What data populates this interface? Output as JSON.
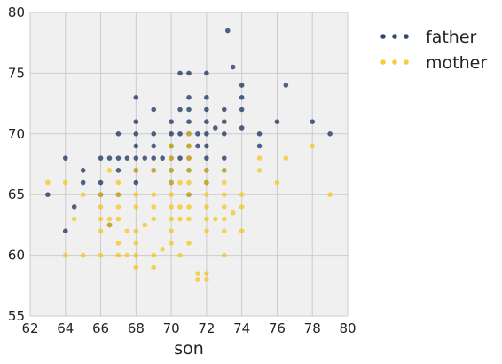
{
  "chart_data": {
    "type": "scatter",
    "title": "",
    "xlabel": "son",
    "ylabel": "",
    "xlim": [
      62,
      80
    ],
    "ylim": [
      55,
      80
    ],
    "xticks": [
      62,
      64,
      66,
      68,
      70,
      72,
      74,
      76,
      78,
      80
    ],
    "yticks": [
      55,
      60,
      65,
      70,
      75,
      80
    ],
    "grid": true,
    "legend_position": "right",
    "series": [
      {
        "name": "father",
        "color": "#0f2a57",
        "points": [
          [
            63,
            65
          ],
          [
            64,
            62
          ],
          [
            64,
            68
          ],
          [
            64.5,
            64
          ],
          [
            65,
            66
          ],
          [
            65,
            67
          ],
          [
            66,
            65
          ],
          [
            66,
            66
          ],
          [
            66,
            68
          ],
          [
            66.5,
            62.5
          ],
          [
            66.5,
            68
          ],
          [
            67,
            65
          ],
          [
            67,
            67
          ],
          [
            67,
            68
          ],
          [
            67,
            70
          ],
          [
            67.5,
            68
          ],
          [
            68,
            66
          ],
          [
            68,
            67
          ],
          [
            68,
            68
          ],
          [
            68,
            69
          ],
          [
            68,
            70
          ],
          [
            68,
            71
          ],
          [
            68,
            73
          ],
          [
            68.5,
            68
          ],
          [
            69,
            67
          ],
          [
            69,
            68
          ],
          [
            69,
            69
          ],
          [
            69,
            70
          ],
          [
            69,
            72
          ],
          [
            69.5,
            68
          ],
          [
            70,
            66
          ],
          [
            70,
            67
          ],
          [
            70,
            68
          ],
          [
            70,
            69
          ],
          [
            70,
            70
          ],
          [
            70,
            71
          ],
          [
            70.5,
            68
          ],
          [
            70.5,
            70
          ],
          [
            70.5,
            72
          ],
          [
            70.5,
            75
          ],
          [
            71,
            65
          ],
          [
            71,
            67
          ],
          [
            71,
            68
          ],
          [
            71,
            69
          ],
          [
            71,
            70
          ],
          [
            71,
            71
          ],
          [
            71,
            72
          ],
          [
            71,
            73
          ],
          [
            71,
            75
          ],
          [
            71.5,
            69
          ],
          [
            71.5,
            70
          ],
          [
            72,
            66
          ],
          [
            72,
            67
          ],
          [
            72,
            68
          ],
          [
            72,
            69
          ],
          [
            72,
            70
          ],
          [
            72,
            71
          ],
          [
            72,
            72
          ],
          [
            72,
            73
          ],
          [
            72,
            75
          ],
          [
            72.5,
            70.5
          ],
          [
            73,
            67
          ],
          [
            73,
            68
          ],
          [
            73,
            70
          ],
          [
            73,
            71
          ],
          [
            73,
            72
          ],
          [
            73.2,
            78.5
          ],
          [
            73.5,
            75.5
          ],
          [
            74,
            70.5
          ],
          [
            74,
            72
          ],
          [
            74,
            73
          ],
          [
            74,
            74
          ],
          [
            75,
            69
          ],
          [
            75,
            70
          ],
          [
            76,
            71
          ],
          [
            76.5,
            74
          ],
          [
            78,
            71
          ],
          [
            79,
            70
          ]
        ]
      },
      {
        "name": "mother",
        "color": "#f5c518",
        "points": [
          [
            63,
            66
          ],
          [
            64,
            60
          ],
          [
            64,
            66
          ],
          [
            64.5,
            63
          ],
          [
            65,
            60
          ],
          [
            65,
            65
          ],
          [
            66,
            60
          ],
          [
            66,
            62
          ],
          [
            66,
            63
          ],
          [
            66,
            64
          ],
          [
            66,
            65
          ],
          [
            66.5,
            62.5
          ],
          [
            66.5,
            63
          ],
          [
            66.5,
            67
          ],
          [
            67,
            60
          ],
          [
            67,
            61
          ],
          [
            67,
            63
          ],
          [
            67,
            64
          ],
          [
            67,
            65
          ],
          [
            67,
            66
          ],
          [
            67.5,
            60
          ],
          [
            67.5,
            62
          ],
          [
            68,
            59
          ],
          [
            68,
            60
          ],
          [
            68,
            61
          ],
          [
            68,
            62
          ],
          [
            68,
            64
          ],
          [
            68,
            65
          ],
          [
            68,
            67
          ],
          [
            68.5,
            62.5
          ],
          [
            69,
            59
          ],
          [
            69,
            60
          ],
          [
            69,
            63
          ],
          [
            69,
            64
          ],
          [
            69,
            65
          ],
          [
            69,
            67
          ],
          [
            69.5,
            60.5
          ],
          [
            70,
            61
          ],
          [
            70,
            62
          ],
          [
            70,
            63
          ],
          [
            70,
            64
          ],
          [
            70,
            65
          ],
          [
            70,
            66
          ],
          [
            70,
            67
          ],
          [
            70,
            68
          ],
          [
            70,
            69
          ],
          [
            70.5,
            60
          ],
          [
            70.5,
            63
          ],
          [
            70.5,
            64
          ],
          [
            70.5,
            66
          ],
          [
            71,
            61
          ],
          [
            71,
            63
          ],
          [
            71,
            64
          ],
          [
            71,
            65
          ],
          [
            71,
            66
          ],
          [
            71,
            67
          ],
          [
            71,
            68
          ],
          [
            71,
            69
          ],
          [
            71,
            70
          ],
          [
            71.5,
            58
          ],
          [
            71.5,
            58.5
          ],
          [
            72,
            58
          ],
          [
            72,
            58.5
          ],
          [
            72,
            62
          ],
          [
            72,
            63
          ],
          [
            72,
            64
          ],
          [
            72,
            65
          ],
          [
            72,
            66
          ],
          [
            72,
            67
          ],
          [
            72.5,
            63
          ],
          [
            73,
            60
          ],
          [
            73,
            62
          ],
          [
            73,
            63
          ],
          [
            73,
            64
          ],
          [
            73,
            65
          ],
          [
            73,
            66
          ],
          [
            73,
            67
          ],
          [
            73.5,
            63.5
          ],
          [
            74,
            62
          ],
          [
            74,
            64
          ],
          [
            74,
            65
          ],
          [
            75,
            67
          ],
          [
            75,
            68
          ],
          [
            76,
            66
          ],
          [
            76.5,
            68
          ],
          [
            78,
            69
          ],
          [
            79,
            65
          ]
        ]
      }
    ]
  }
}
